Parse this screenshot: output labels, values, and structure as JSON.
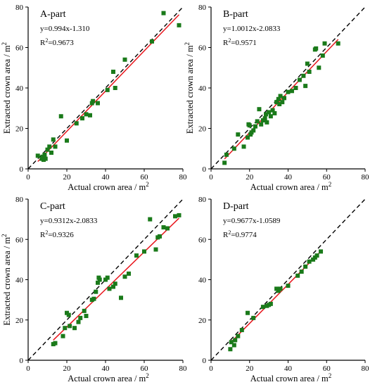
{
  "colors": {
    "marker": "#1a7a1a",
    "fit_line": "#e8141b",
    "one_to_one": "#000000",
    "axis": "#000000",
    "background": "#ffffff"
  },
  "chart_data": [
    {
      "type": "scatter",
      "title": "A-part",
      "equation": "y=0.994x-1.310",
      "r2_prefix": "R",
      "r2_sup": "2",
      "r2_value": "=0.9673",
      "fit": {
        "slope": 0.994,
        "intercept": -1.31
      },
      "xlabel": "Actual crown area / m",
      "xlabel_sup": "2",
      "ylabel": "Extracted crown area / m",
      "ylabel_sup": "2",
      "xlim": [
        0,
        80
      ],
      "ylim": [
        0,
        80
      ],
      "x_ticks": [
        0,
        20,
        40,
        60,
        80
      ],
      "y_ticks": [
        0,
        20,
        40,
        60,
        80
      ],
      "show_xlabel": true,
      "show_ylabel": true,
      "grid": false,
      "reference_line": "1:1 dashed",
      "points": [
        [
          5,
          6.5
        ],
        [
          7,
          5
        ],
        [
          7.5,
          6
        ],
        [
          8,
          4.5
        ],
        [
          8.5,
          7
        ],
        [
          9,
          5
        ],
        [
          10,
          9.5
        ],
        [
          11,
          11
        ],
        [
          12,
          8
        ],
        [
          13,
          14.5
        ],
        [
          14,
          11
        ],
        [
          17,
          26
        ],
        [
          20,
          14
        ],
        [
          25,
          22.5
        ],
        [
          28,
          25
        ],
        [
          30,
          27
        ],
        [
          32,
          26.5
        ],
        [
          33,
          32.5
        ],
        [
          33.5,
          33.5
        ],
        [
          36,
          32.5
        ],
        [
          41,
          39
        ],
        [
          44,
          48
        ],
        [
          45,
          40
        ],
        [
          50,
          54
        ],
        [
          64,
          63
        ],
        [
          70,
          77
        ],
        [
          78,
          71
        ]
      ]
    },
    {
      "type": "scatter",
      "title": "B-part",
      "equation": "y=1.0012x-2.0833",
      "r2_prefix": "R",
      "r2_sup": "2",
      "r2_value": "=0.9571",
      "fit": {
        "slope": 1.0012,
        "intercept": -2.0833
      },
      "xlabel": "Actual crown area / m",
      "xlabel_sup": "2",
      "ylabel": "Extracted crown area / m",
      "ylabel_sup": "2",
      "xlim": [
        0,
        80
      ],
      "ylim": [
        0,
        80
      ],
      "x_ticks": [
        0,
        20,
        40,
        60,
        80
      ],
      "y_ticks": [
        0,
        20,
        40,
        60,
        80
      ],
      "show_xlabel": true,
      "show_ylabel": true,
      "grid": false,
      "reference_line": "1:1 dashed",
      "points": [
        [
          7,
          3
        ],
        [
          8,
          7
        ],
        [
          12,
          10
        ],
        [
          14,
          17
        ],
        [
          17,
          11
        ],
        [
          19,
          15.5
        ],
        [
          19.5,
          22
        ],
        [
          20,
          21.5
        ],
        [
          20.5,
          17
        ],
        [
          21,
          18
        ],
        [
          22,
          19
        ],
        [
          23,
          21
        ],
        [
          24,
          23.5
        ],
        [
          25,
          29.5
        ],
        [
          26,
          22
        ],
        [
          27,
          24
        ],
        [
          28,
          25
        ],
        [
          28.5,
          27
        ],
        [
          29,
          23
        ],
        [
          30,
          28
        ],
        [
          31,
          26
        ],
        [
          32,
          29
        ],
        [
          33,
          27.5
        ],
        [
          34,
          33
        ],
        [
          35,
          34.5
        ],
        [
          35.5,
          32
        ],
        [
          36,
          36
        ],
        [
          37,
          33
        ],
        [
          38,
          35
        ],
        [
          40,
          38
        ],
        [
          42,
          38.5
        ],
        [
          44,
          40
        ],
        [
          46,
          44
        ],
        [
          48,
          46
        ],
        [
          49,
          41
        ],
        [
          50,
          52
        ],
        [
          51,
          48
        ],
        [
          54,
          59
        ],
        [
          54.5,
          59.5
        ],
        [
          56,
          50
        ],
        [
          58,
          56
        ],
        [
          59,
          62
        ],
        [
          66,
          62
        ]
      ]
    },
    {
      "type": "scatter",
      "title": "C-part",
      "equation": "y=0.9312x-2.0833",
      "r2_prefix": "R",
      "r2_sup": "2",
      "r2_value": "=0.9326",
      "fit": {
        "slope": 0.9312,
        "intercept": -2.0833
      },
      "xlabel": "Actual crown area / m",
      "xlabel_sup": "2",
      "ylabel": "Extracted crown area / m",
      "ylabel_sup": "2",
      "xlim": [
        0,
        80
      ],
      "ylim": [
        0,
        80
      ],
      "x_ticks": [
        0,
        20,
        40,
        60,
        80
      ],
      "y_ticks": [
        0,
        20,
        40,
        60,
        80
      ],
      "show_xlabel": true,
      "show_ylabel": true,
      "grid": false,
      "reference_line": "1:1 dashed",
      "points": [
        [
          13,
          8
        ],
        [
          14,
          8.5
        ],
        [
          18,
          12
        ],
        [
          19,
          16
        ],
        [
          20,
          23.5
        ],
        [
          21,
          22.5
        ],
        [
          21.5,
          17
        ],
        [
          24,
          16
        ],
        [
          26,
          19
        ],
        [
          27,
          21
        ],
        [
          29,
          24.5
        ],
        [
          30,
          22
        ],
        [
          33,
          30
        ],
        [
          34,
          30.5
        ],
        [
          35,
          34
        ],
        [
          36,
          38.5
        ],
        [
          37,
          40
        ],
        [
          36.5,
          41
        ],
        [
          40,
          40
        ],
        [
          41,
          41
        ],
        [
          42,
          35.5
        ],
        [
          44,
          36.5
        ],
        [
          45,
          38
        ],
        [
          48,
          31
        ],
        [
          50,
          41.5
        ],
        [
          52,
          43
        ],
        [
          56,
          52
        ],
        [
          60,
          54
        ],
        [
          63,
          70
        ],
        [
          66,
          55
        ],
        [
          67,
          61
        ],
        [
          68,
          61.5
        ],
        [
          70,
          66
        ],
        [
          72,
          65.5
        ],
        [
          76,
          71.5
        ],
        [
          78,
          72
        ]
      ]
    },
    {
      "type": "scatter",
      "title": "D-part",
      "equation": "y=0.9677x-1.0589",
      "r2_prefix": "R",
      "r2_sup": "2",
      "r2_value": "=0.9774",
      "fit": {
        "slope": 0.9677,
        "intercept": -1.0589
      },
      "xlabel": "Actual crown area / m",
      "xlabel_sup": "2",
      "ylabel": "",
      "ylabel_sup": "",
      "xlim": [
        0,
        80
      ],
      "ylim": [
        0,
        80
      ],
      "x_ticks": [
        0,
        20,
        40,
        60,
        80
      ],
      "y_ticks": [
        0,
        20,
        40,
        60,
        80
      ],
      "show_xlabel": true,
      "show_ylabel": false,
      "grid": false,
      "reference_line": "1:1 dashed",
      "points": [
        [
          10,
          5.5
        ],
        [
          10.5,
          9
        ],
        [
          12,
          7.5
        ],
        [
          12.5,
          10
        ],
        [
          14,
          12
        ],
        [
          16,
          15
        ],
        [
          19,
          23.5
        ],
        [
          22,
          21
        ],
        [
          27,
          26.5
        ],
        [
          29,
          27
        ],
        [
          30,
          27.5
        ],
        [
          31,
          28
        ],
        [
          34,
          35.5
        ],
        [
          35,
          34.5
        ],
        [
          36,
          35.5
        ],
        [
          40,
          37
        ],
        [
          45,
          42
        ],
        [
          47,
          44
        ],
        [
          49,
          46.5
        ],
        [
          51,
          49
        ],
        [
          53,
          50
        ],
        [
          54,
          51
        ],
        [
          55,
          52
        ],
        [
          57,
          54
        ]
      ]
    }
  ]
}
